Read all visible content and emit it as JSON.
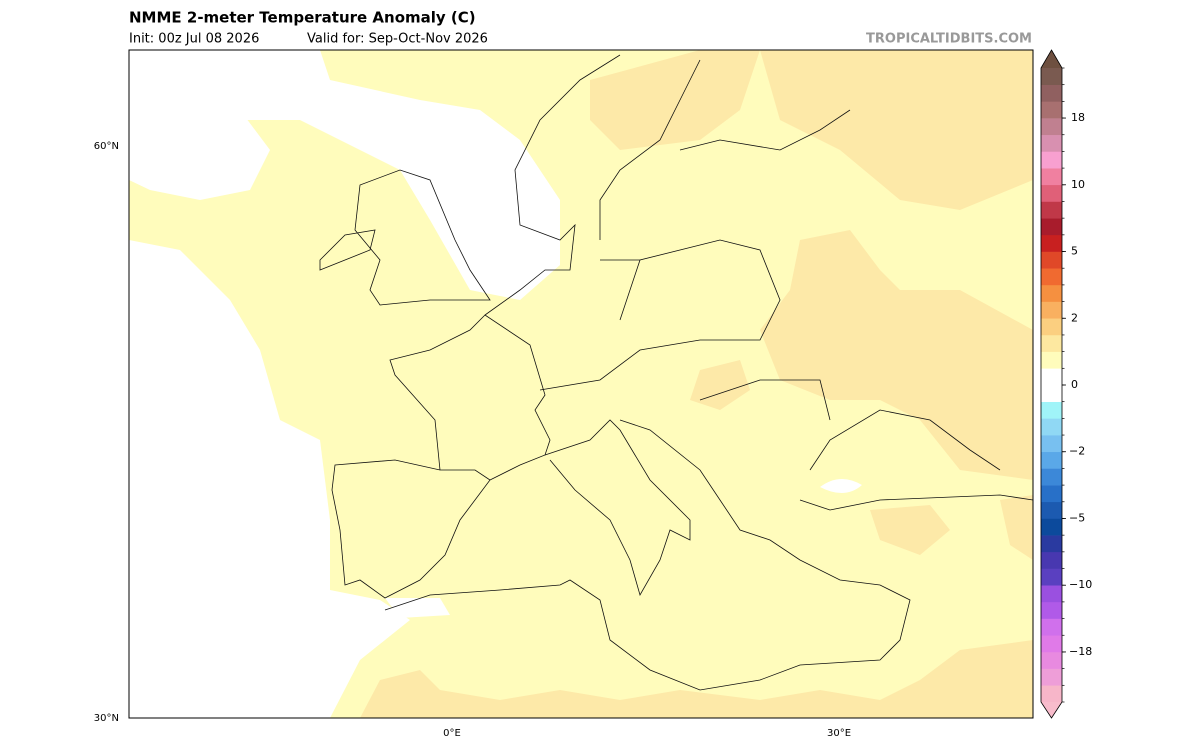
{
  "header": {
    "title": "NMME 2-meter Temperature Anomaly (C)",
    "init": "Init: 00z Jul 08 2026",
    "valid": "Valid for: Sep-Oct-Nov 2026",
    "source": "TROPICALTIDBITS.COM"
  },
  "map": {
    "lat_labels": [
      "60°N",
      "30°N"
    ],
    "lon_labels": [
      "0°E",
      "30°E"
    ]
  },
  "colorbar": {
    "levels": [
      -24,
      -22,
      -20,
      -18,
      -16,
      -14,
      -12,
      -10,
      -8,
      -7,
      -6,
      -5,
      -4,
      -3,
      -2.5,
      -2,
      -1.5,
      -1,
      -0.5,
      0,
      0.5,
      1,
      1.5,
      2,
      2.5,
      3,
      4,
      5,
      6,
      7,
      8,
      10,
      12,
      14,
      16,
      18,
      20,
      22,
      24
    ],
    "colors": [
      "#f7b6c9",
      "#ee9ed8",
      "#e88ae0",
      "#e07ae8",
      "#d070ec",
      "#b05ae8",
      "#9a50e0",
      "#5a40c0",
      "#4838b0",
      "#2a3aa0",
      "#0c4a9c",
      "#1c5ab0",
      "#2870c8",
      "#3c88d8",
      "#5aa8e8",
      "#78c0f0",
      "#90d8f4",
      "#a0f4f8",
      "#ffffff",
      "#ffffff",
      "#fffcbc",
      "#fde8a0",
      "#fbcf80",
      "#f9b060",
      "#f59040",
      "#f06a30",
      "#e04828",
      "#c82020",
      "#a81c2c",
      "#c03848",
      "#e06078",
      "#f080a0",
      "#f8a0d0",
      "#d890b0",
      "#c08090",
      "#a87070",
      "#906060",
      "#7a5a50"
    ],
    "under_color": "#f8bccc",
    "over_color": "#6e5040",
    "ticks": [
      18,
      10,
      5,
      2,
      0,
      {
        "value": -2,
        "label": "−2"
      },
      {
        "value": -5,
        "label": "−5"
      },
      {
        "value": -10,
        "label": "−10"
      },
      {
        "value": -18,
        "label": "−18"
      }
    ]
  }
}
